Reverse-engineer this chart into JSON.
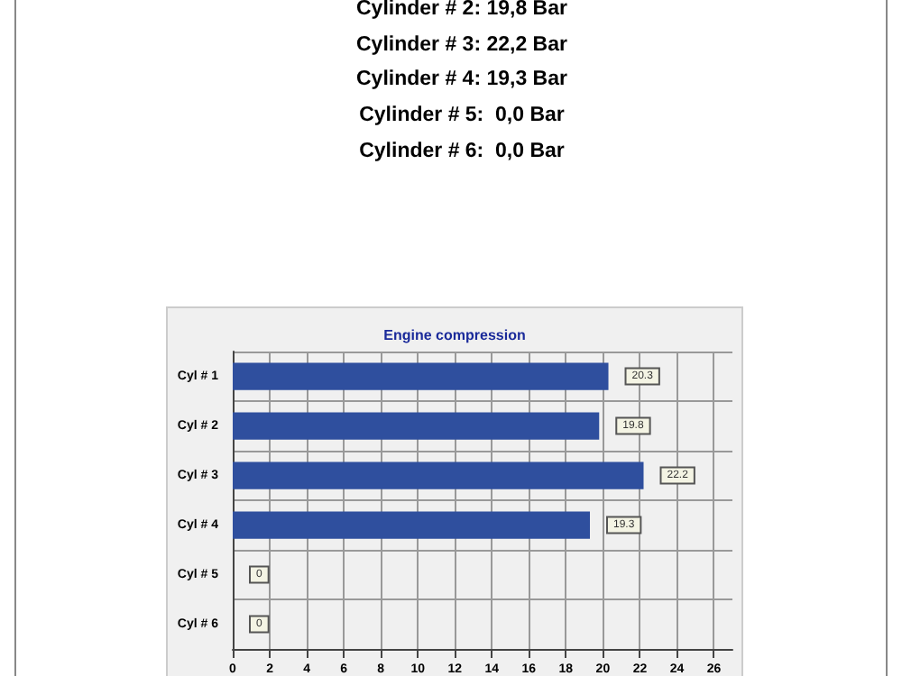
{
  "chart_data": {
    "type": "bar",
    "orientation": "horizontal",
    "title": "Engine compression",
    "annotations": [
      "Cylinder # 2: 19,8 Bar",
      "Cylinder # 3: 22,2 Bar",
      "Cylinder # 4: 19,3 Bar",
      "Cylinder # 5:  0,0 Bar",
      "Cylinder # 6:  0,0 Bar"
    ],
    "categories": [
      "Cyl # 1",
      "Cyl # 2",
      "Cyl # 3",
      "Cyl # 4",
      "Cyl # 5",
      "Cyl # 6"
    ],
    "values": [
      20.3,
      19.8,
      22.2,
      19.3,
      0,
      0
    ],
    "color": "#2f4f9e",
    "xlim": [
      0,
      27
    ],
    "xticks": [
      0,
      2,
      4,
      6,
      8,
      10,
      12,
      14,
      16,
      18,
      20,
      22,
      24,
      26
    ],
    "grid": true,
    "data_labels": true
  }
}
